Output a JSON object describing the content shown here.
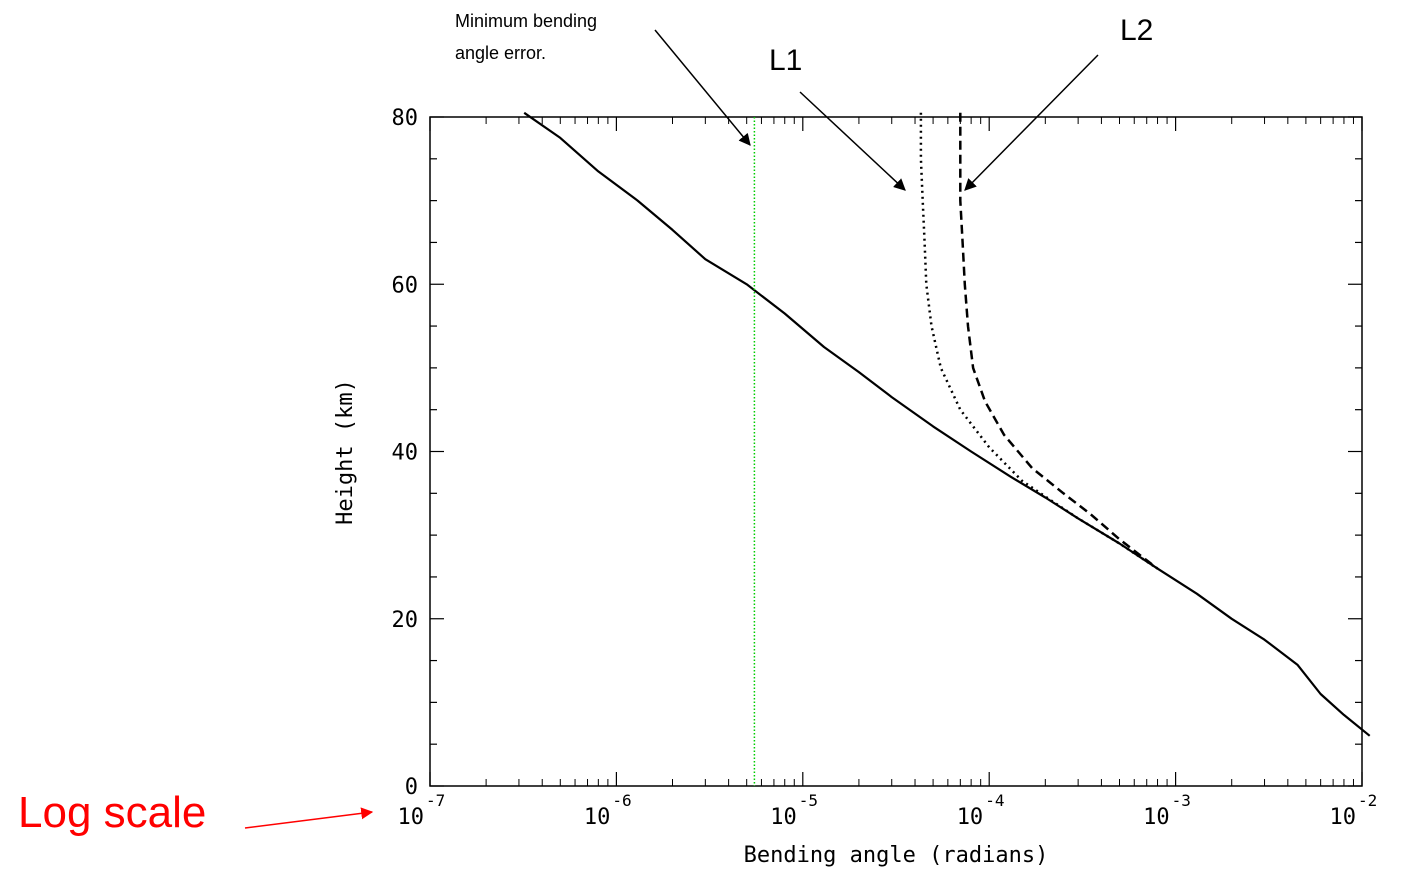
{
  "chart_data": {
    "type": "line",
    "x_scale": "log",
    "xlim": [
      1e-07,
      0.01
    ],
    "ylim": [
      0,
      80
    ],
    "xlabel": "Bending angle (radians)",
    "ylabel": "Height (km)",
    "x_ticks": [
      {
        "base": "10",
        "exp": "-7"
      },
      {
        "base": "10",
        "exp": "-6"
      },
      {
        "base": "10",
        "exp": "-5"
      },
      {
        "base": "10",
        "exp": "-4"
      },
      {
        "base": "10",
        "exp": "-3"
      },
      {
        "base": "10",
        "exp": "-2"
      }
    ],
    "y_ticks": [
      "0",
      "20",
      "40",
      "60",
      "80"
    ],
    "series": [
      {
        "style": "solid",
        "color": "#000000",
        "points": [
          [
            3.2e-07,
            80.5
          ],
          [
            5e-07,
            77.5
          ],
          [
            8e-07,
            73.5
          ],
          [
            1.3e-06,
            70
          ],
          [
            2e-06,
            66.5
          ],
          [
            3e-06,
            63
          ],
          [
            5e-06,
            60
          ],
          [
            8e-06,
            56.5
          ],
          [
            1.3e-05,
            52.5
          ],
          [
            2e-05,
            49.5
          ],
          [
            3e-05,
            46.5
          ],
          [
            5e-05,
            43
          ],
          [
            8e-05,
            40
          ],
          [
            0.00013,
            37
          ],
          [
            0.0002,
            34.5
          ],
          [
            0.0003,
            32
          ],
          [
            0.0005,
            29
          ],
          [
            0.0008,
            26
          ],
          [
            0.0013,
            23
          ],
          [
            0.002,
            20
          ],
          [
            0.003,
            17.5
          ],
          [
            0.0045,
            14.5
          ],
          [
            0.006,
            11
          ],
          [
            0.008,
            8.5
          ],
          [
            0.011,
            6
          ]
        ]
      },
      {
        "style": "dotted",
        "color": "#000000",
        "points": [
          [
            4.3e-05,
            80.5
          ],
          [
            4.3e-05,
            75
          ],
          [
            4.4e-05,
            70
          ],
          [
            4.5e-05,
            65
          ],
          [
            4.6e-05,
            60
          ],
          [
            4.9e-05,
            55
          ],
          [
            5.5e-05,
            50
          ],
          [
            7e-05,
            45
          ],
          [
            0.0001,
            40.5
          ],
          [
            0.00015,
            36.5
          ],
          [
            0.00022,
            34
          ],
          [
            0.0003,
            32
          ],
          [
            0.0005,
            29
          ],
          [
            0.0008,
            26
          ]
        ]
      },
      {
        "style": "dashed",
        "color": "#000000",
        "points": [
          [
            7e-05,
            80.5
          ],
          [
            7e-05,
            75
          ],
          [
            7e-05,
            70
          ],
          [
            7.2e-05,
            65
          ],
          [
            7.4e-05,
            60
          ],
          [
            7.7e-05,
            55
          ],
          [
            8.2e-05,
            50
          ],
          [
            9.5e-05,
            46
          ],
          [
            0.00012,
            42
          ],
          [
            0.00017,
            38
          ],
          [
            0.00025,
            35
          ],
          [
            0.00035,
            32.5
          ],
          [
            0.0005,
            29.5
          ],
          [
            0.0008,
            26
          ]
        ]
      },
      {
        "style": "vertical-dotted",
        "color": "#00cc00",
        "x": 5.5e-06,
        "y": [
          0,
          80
        ]
      }
    ],
    "annotations": [
      {
        "text": "Minimum bending angle error.",
        "lines": [
          "Minimum bending",
          "angle error."
        ]
      },
      {
        "text": "L1"
      },
      {
        "text": "L2"
      },
      {
        "text": "Log scale",
        "color": "#ff0000"
      }
    ]
  }
}
